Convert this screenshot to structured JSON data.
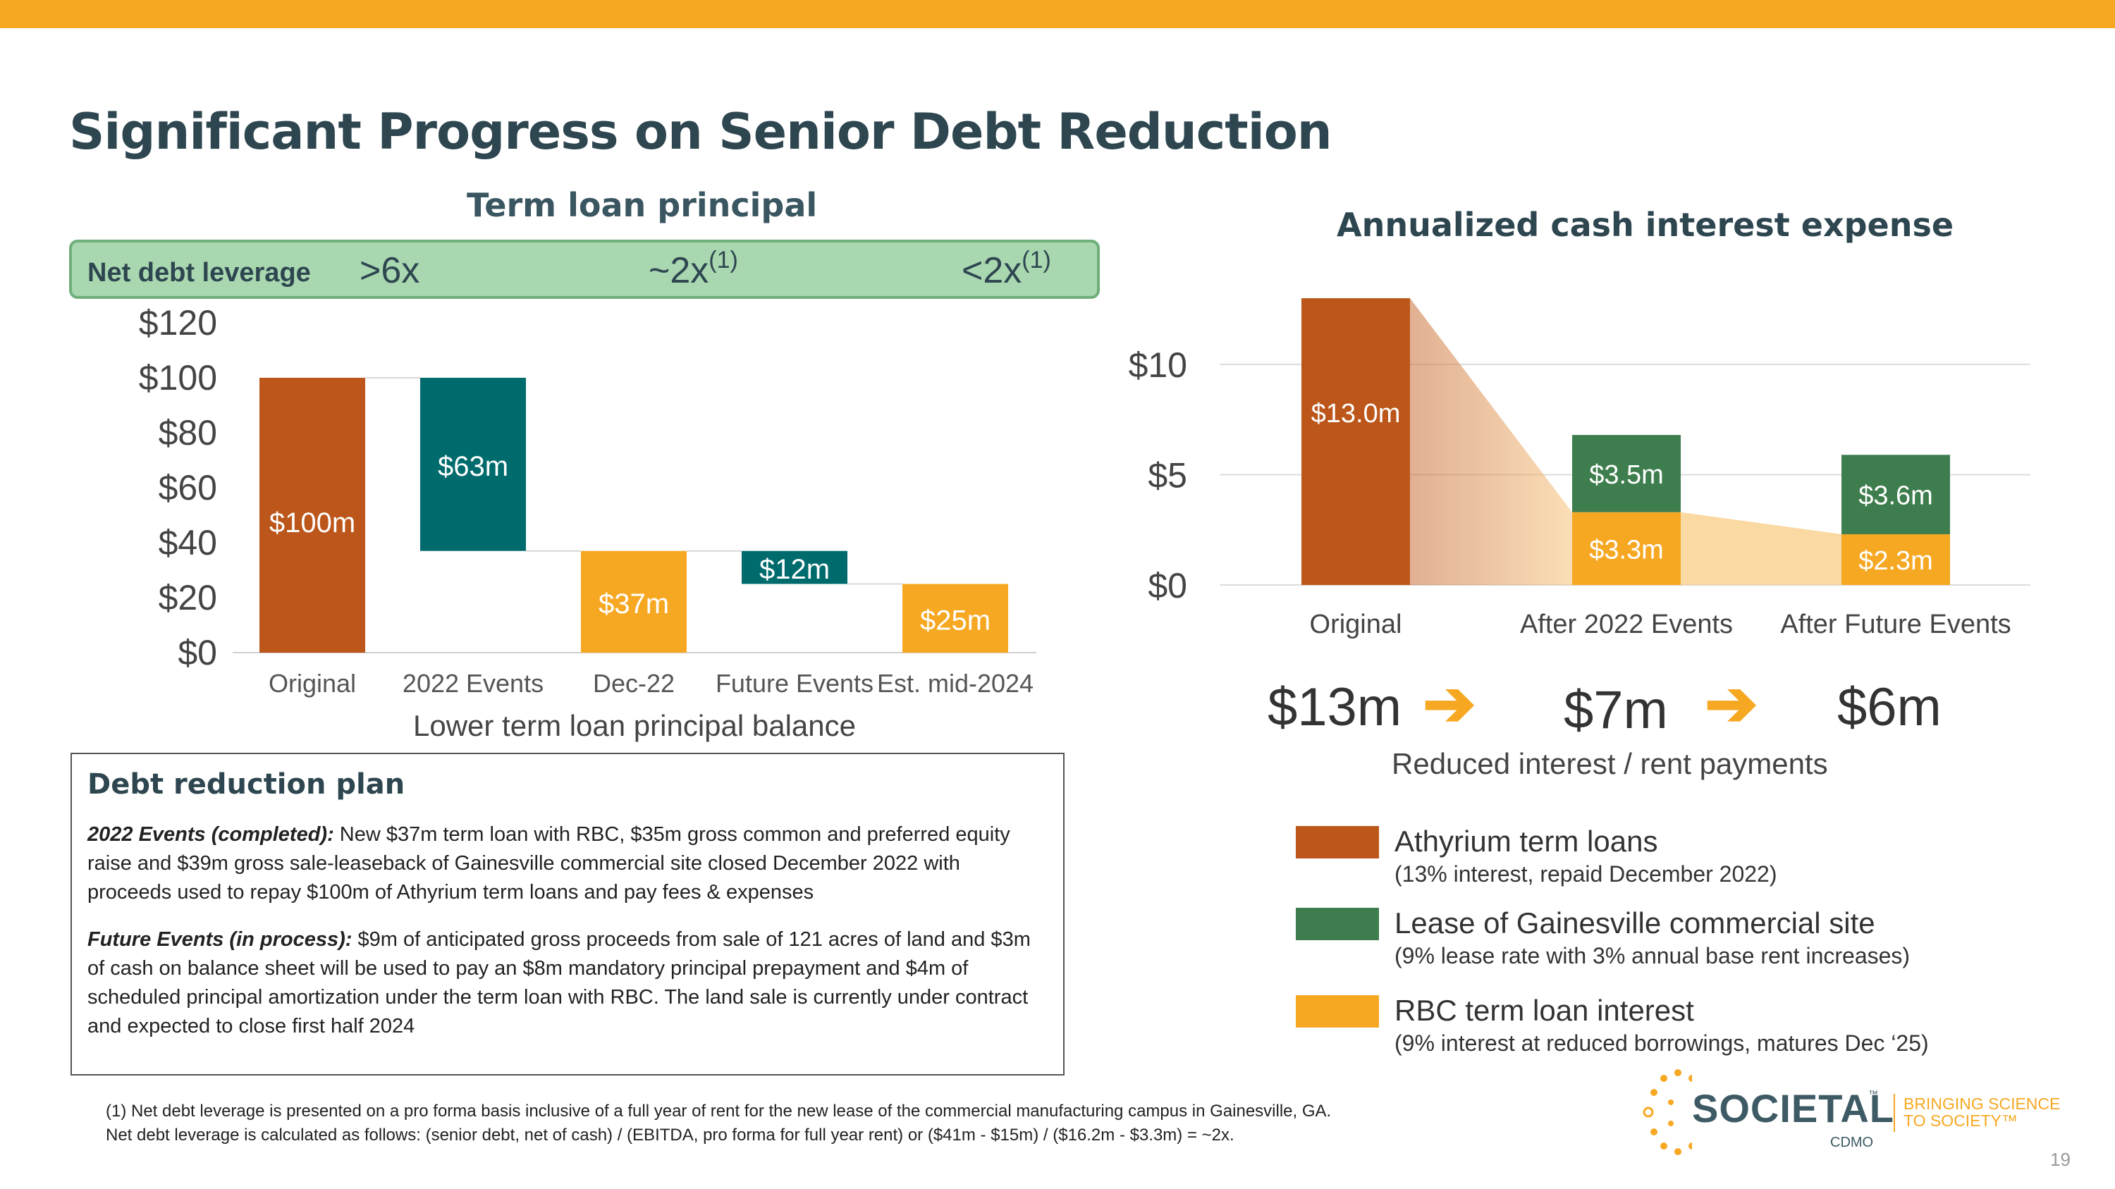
{
  "title": "Significant Progress on Senior Debt Reduction",
  "leverage": {
    "label": "Net debt leverage",
    "v1": ">6x",
    "v2": "~2x",
    "v2_sup": "(1)",
    "v3": "<2x",
    "v3_sup": "(1)"
  },
  "left_caption": "Lower term loan principal balance",
  "right_caption": "Reduced interest / rent payments",
  "flow": {
    "a": "$13m",
    "b": "$7m",
    "c": "$6m"
  },
  "colors": {
    "orange_brown": "#bc561a",
    "teal": "#006b6d",
    "yellow": "#f7a823",
    "green": "#3e7e4e",
    "accent": "#f7a823"
  },
  "chart_data": [
    {
      "type": "bar",
      "subtype": "waterfall",
      "title": "Term loan principal",
      "categories": [
        "Original",
        "2022 Events",
        "Dec-22",
        "Future Events",
        "Est. mid-2024"
      ],
      "values": [
        100,
        -63,
        37,
        -12,
        25
      ],
      "bar_kind": [
        "total",
        "delta",
        "total",
        "delta",
        "total"
      ],
      "data_labels": [
        "$100m",
        "$63m",
        "$37m",
        "$12m",
        "$25m"
      ],
      "y_ticks": [
        "$0",
        "$20",
        "$40",
        "$60",
        "$80",
        "$100",
        "$120"
      ],
      "ylim": [
        0,
        120
      ],
      "xlabel": "Lower term loan principal balance",
      "ylabel": "",
      "grid": false
    },
    {
      "type": "bar",
      "subtype": "stacked",
      "title": "Annualized cash interest expense",
      "categories": [
        "Original",
        "After 2022 Events",
        "After Future Events"
      ],
      "series": [
        {
          "name": "Athyrium term loans",
          "detail": "(13% interest, repaid December 2022)",
          "values": [
            13.0,
            0,
            0
          ],
          "labels": [
            "$13.0m",
            "",
            ""
          ]
        },
        {
          "name": "RBC term loan interest",
          "detail": "(9% interest at reduced borrowings, matures Dec ‘25)",
          "values": [
            0,
            3.3,
            2.3
          ],
          "labels": [
            "",
            "$3.3m",
            "$2.3m"
          ]
        },
        {
          "name": "Lease of Gainesville commercial site",
          "detail": "(9% lease rate with 3% annual base rent increases)",
          "values": [
            0,
            3.5,
            3.6
          ],
          "labels": [
            "",
            "$3.5m",
            "$3.6m"
          ]
        }
      ],
      "y_ticks": [
        "$0",
        "$5",
        "$10"
      ],
      "ylim": [
        0,
        12
      ],
      "xlabel": "Reduced interest / rent payments",
      "grid": true,
      "legend_position": "bottom"
    }
  ],
  "plan": {
    "heading": "Debt reduction plan",
    "p1_label": "2022 Events (completed):",
    "p1_text": " New $37m term loan with RBC, $35m gross common and preferred equity raise and $39m gross sale-leaseback of Gainesville commercial site closed December 2022 with proceeds used to repay $100m of Athyrium term loans and pay fees & expenses",
    "p2_label": "Future Events (in process):",
    "p2_text": " $9m of anticipated gross proceeds from sale of 121 acres of land and $3m of cash on balance sheet will be used to pay an $8m mandatory principal prepayment and $4m of scheduled principal amortization under the term loan with RBC. The land sale is currently under contract and expected to close first half 2024"
  },
  "footnote": {
    "line1": "(1) Net debt leverage is presented on a pro forma basis inclusive of a full year of rent for the new lease of the commercial manufacturing campus in Gainesville, GA.",
    "line2": "Net debt leverage is calculated as follows: (senior debt, net of cash) / (EBITDA, pro forma for full year rent) or ($41m - $15m) / ($16.2m - $3.3m) = ~2x."
  },
  "logo": {
    "name": "SOCIETAL",
    "tm": "™",
    "tagline": "BRINGING SCIENCE\nTO SOCIETY™",
    "sub": "CDMO"
  },
  "page_number": "19"
}
